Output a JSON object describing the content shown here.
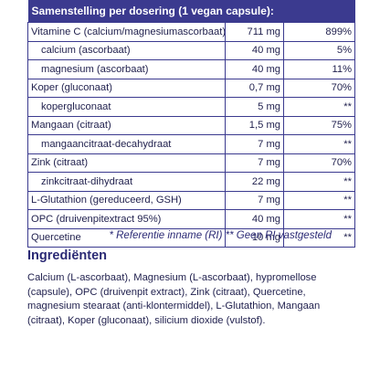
{
  "table": {
    "header": "Samenstelling per dosering (1 vegan capsule):",
    "rows": [
      {
        "name": "Vitamine C (calcium/magnesiumascorbaat)",
        "amount": "711 mg",
        "ri": "899%"
      },
      {
        "name": "calcium (ascorbaat)",
        "amount": "40 mg",
        "ri": "5%"
      },
      {
        "name": "magnesium (ascorbaat)",
        "amount": "40 mg",
        "ri": "11%"
      },
      {
        "name": "Koper (gluconaat)",
        "amount": "0,7 mg",
        "ri": "70%"
      },
      {
        "name": "kopergluconaat",
        "amount": "5 mg",
        "ri": "**"
      },
      {
        "name": "Mangaan (citraat)",
        "amount": "1,5 mg",
        "ri": "75%"
      },
      {
        "name": "mangaancitraat-decahydraat",
        "amount": "7 mg",
        "ri": "**"
      },
      {
        "name": "Zink (citraat)",
        "amount": "7 mg",
        "ri": "70%"
      },
      {
        "name": "zinkcitraat-dihydraat",
        "amount": "22 mg",
        "ri": "**"
      },
      {
        "name": "L-Glutathion (gereduceerd, GSH)",
        "amount": "7 mg",
        "ri": "**"
      },
      {
        "name": "OPC (druivenpitextract 95%)",
        "amount": "40 mg",
        "ri": "**"
      },
      {
        "name": "Quercetine",
        "amount": "10 mg",
        "ri": "**"
      }
    ]
  },
  "footnote": "* Referentie inname (RI)  ** Geen RI vastgesteld",
  "ingredients": {
    "title": "Ingrediënten",
    "text": "Calcium (L-ascorbaat), Magnesium (L-ascorbaat), hypromellose (capsule), OPC (druivenpit extract), Zink (citraat), Quercetine, magnesium stearaat (anti-klontermiddel), L-Glutathion, Mangaan (citraat), Koper (gluconaat), silicium dioxide (vulstof)."
  },
  "colors": {
    "brand": "#3b3a8f",
    "text": "#1f1f4d"
  }
}
